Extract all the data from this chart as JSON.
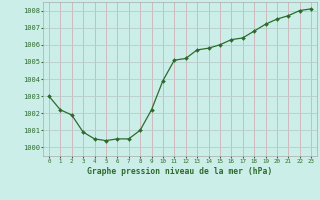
{
  "x": [
    0,
    1,
    2,
    3,
    4,
    5,
    6,
    7,
    8,
    9,
    10,
    11,
    12,
    13,
    14,
    15,
    16,
    17,
    18,
    19,
    20,
    21,
    22,
    23
  ],
  "y": [
    1003.0,
    1002.2,
    1001.9,
    1000.9,
    1000.5,
    1000.4,
    1000.5,
    1000.5,
    1001.0,
    1002.2,
    1003.9,
    1005.1,
    1005.2,
    1005.7,
    1005.8,
    1006.0,
    1006.3,
    1006.4,
    1006.8,
    1007.2,
    1007.5,
    1007.7,
    1008.0,
    1008.1
  ],
  "line_color": "#2d6b2d",
  "marker_color": "#2d6b2d",
  "bg_color": "#cceee8",
  "grid_major_color": "#c8c8d8",
  "grid_minor_color": "#dde8e8",
  "xlabel": "Graphe pression niveau de la mer (hPa)",
  "xlabel_color": "#2d6b2d",
  "tick_color": "#2d6b2d",
  "ylim": [
    999.5,
    1008.5
  ],
  "xlim": [
    -0.5,
    23.5
  ],
  "yticks": [
    1000,
    1001,
    1002,
    1003,
    1004,
    1005,
    1006,
    1007,
    1008
  ],
  "xticks": [
    0,
    1,
    2,
    3,
    4,
    5,
    6,
    7,
    8,
    9,
    10,
    11,
    12,
    13,
    14,
    15,
    16,
    17,
    18,
    19,
    20,
    21,
    22,
    23
  ]
}
